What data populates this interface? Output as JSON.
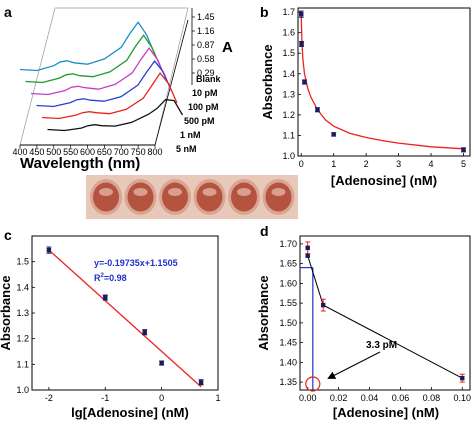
{
  "figure": {
    "panel_a": {
      "letter": "a",
      "xlabel": "Wavelength (nm)",
      "zlabel": "A",
      "x_ticks": [
        "400",
        "450",
        "500",
        "550",
        "600",
        "650",
        "700",
        "750",
        "800"
      ],
      "z_ticks": [
        "1.45",
        "1.16",
        "0.87",
        "0.58",
        "0.29"
      ],
      "samples": [
        "Blank",
        "10 pM",
        "100 pM",
        "500 pM",
        "1 nM",
        "5 nM"
      ]
    },
    "panel_b": {
      "letter": "b",
      "xlabel": "[Adenosine] (nM)",
      "ylabel": "Absorbance",
      "x_ticks": [
        "0",
        "1",
        "2",
        "3",
        "4",
        "5"
      ],
      "y_ticks": [
        "1.0",
        "1.1",
        "1.2",
        "1.3",
        "1.4",
        "1.5",
        "1.6",
        "1.7"
      ]
    },
    "panel_c": {
      "letter": "c",
      "xlabel": "lg[Adenosine] (nM)",
      "ylabel": "Absorbance",
      "x_ticks": [
        "-2",
        "-1",
        "0",
        "1"
      ],
      "y_ticks": [
        "1.0",
        "1.1",
        "1.2",
        "1.3",
        "1.4",
        "1.5"
      ],
      "equation": "y=-0.19735x+1.1505",
      "r2_prefix": "R",
      "r2_sup": "2",
      "r2_suffix": "=0.98"
    },
    "panel_d": {
      "letter": "d",
      "xlabel": "[Adenosine] (nM)",
      "ylabel": "Absorbance",
      "x_ticks": [
        "0.00",
        "0.02",
        "0.04",
        "0.06",
        "0.08",
        "0.10"
      ],
      "y_ticks": [
        "1.35",
        "1.40",
        "1.45",
        "1.50",
        "1.55",
        "1.60",
        "1.65",
        "1.70"
      ],
      "annotation": "3.3 pM"
    }
  },
  "colors": {
    "curve_red": "#e8231f",
    "fit_blue": "#1f32c8",
    "marker_dark": "#1a1a5e",
    "panel_a_series": [
      "#111111",
      "#e8231f",
      "#2b3fd0",
      "#c83cc8",
      "#1f9a2e",
      "#1a8fc8"
    ],
    "wells_bg": "#e8c8b8",
    "well_fill": "#b4533f"
  },
  "chart_data": [
    {
      "panel": "a",
      "type": "line",
      "xlabel": "Wavelength (nm)",
      "zlabel": "A",
      "xlim": [
        400,
        800
      ],
      "zlim": [
        0.29,
        1.45
      ],
      "series": [
        {
          "name": "Blank",
          "x": [
            400,
            450,
            500,
            520,
            540,
            560,
            600,
            650,
            700,
            725,
            750,
            775,
            800
          ],
          "values": [
            0.3,
            0.28,
            0.33,
            0.38,
            0.4,
            0.38,
            0.37,
            0.45,
            0.62,
            0.74,
            0.92,
            0.9,
            0.6
          ]
        },
        {
          "name": "10 pM",
          "x": [
            400,
            450,
            500,
            520,
            540,
            560,
            600,
            650,
            700,
            725,
            750,
            775,
            800
          ],
          "values": [
            0.3,
            0.28,
            0.35,
            0.4,
            0.42,
            0.4,
            0.38,
            0.47,
            0.7,
            0.96,
            1.22,
            1.0,
            0.6
          ]
        },
        {
          "name": "100 pM",
          "x": [
            400,
            450,
            500,
            520,
            540,
            560,
            600,
            650,
            700,
            725,
            750,
            775,
            800
          ],
          "values": [
            0.3,
            0.28,
            0.36,
            0.42,
            0.44,
            0.41,
            0.39,
            0.48,
            0.72,
            0.98,
            1.22,
            1.0,
            0.6
          ]
        },
        {
          "name": "500 pM",
          "x": [
            400,
            450,
            500,
            520,
            540,
            560,
            600,
            650,
            700,
            725,
            750,
            775,
            800
          ],
          "values": [
            0.3,
            0.28,
            0.36,
            0.43,
            0.45,
            0.42,
            0.39,
            0.49,
            0.73,
            1.0,
            1.24,
            1.0,
            0.6
          ]
        },
        {
          "name": "1 nM",
          "x": [
            400,
            450,
            500,
            520,
            540,
            560,
            600,
            650,
            700,
            725,
            750,
            775,
            800
          ],
          "values": [
            0.3,
            0.28,
            0.37,
            0.44,
            0.46,
            0.42,
            0.4,
            0.5,
            0.74,
            1.02,
            1.26,
            1.0,
            0.6
          ]
        },
        {
          "name": "5 nM",
          "x": [
            400,
            450,
            500,
            520,
            540,
            560,
            600,
            650,
            700,
            725,
            750,
            775,
            800
          ],
          "values": [
            0.3,
            0.28,
            0.38,
            0.46,
            0.48,
            0.44,
            0.41,
            0.52,
            0.76,
            1.04,
            1.28,
            1.02,
            0.6
          ]
        }
      ]
    },
    {
      "panel": "b",
      "type": "scatter",
      "xlabel": "[Adenosine] (nM)",
      "ylabel": "Absorbance",
      "xlim": [
        -0.1,
        5.2
      ],
      "ylim": [
        1.0,
        1.72
      ],
      "points": {
        "x": [
          0,
          0.01,
          0.1,
          0.5,
          1,
          5
        ],
        "values": [
          1.69,
          1.545,
          1.36,
          1.225,
          1.105,
          1.03
        ],
        "errors": [
          0.015,
          0.012,
          0.01,
          0.01,
          0.008,
          0.01
        ]
      },
      "fit": {
        "x": [
          0,
          0.02,
          0.05,
          0.1,
          0.2,
          0.3,
          0.5,
          0.75,
          1,
          1.5,
          2,
          2.5,
          3,
          4,
          5
        ],
        "values": [
          1.69,
          1.56,
          1.47,
          1.4,
          1.33,
          1.285,
          1.225,
          1.175,
          1.145,
          1.11,
          1.09,
          1.075,
          1.063,
          1.045,
          1.035
        ]
      }
    },
    {
      "panel": "c",
      "type": "scatter",
      "xlabel": "lg[Adenosine] (nM)",
      "ylabel": "Absorbance",
      "xlim": [
        -2.3,
        1.0
      ],
      "ylim": [
        1.0,
        1.6
      ],
      "points": {
        "x": [
          -2,
          -1,
          -0.3,
          0,
          0.7
        ],
        "values": [
          1.545,
          1.36,
          1.225,
          1.105,
          1.03
        ],
        "errors": [
          0.012,
          0.01,
          0.01,
          0.008,
          0.01
        ]
      },
      "fit": {
        "slope": -0.19735,
        "intercept": 1.1505,
        "x": [
          -2,
          0.7
        ]
      },
      "annotation": "y=-0.19735x+1.1505, R2=0.98"
    },
    {
      "panel": "d",
      "type": "line",
      "xlabel": "[Adenosine] (nM)",
      "ylabel": "Absorbance",
      "xlim": [
        -0.005,
        0.105
      ],
      "ylim": [
        1.33,
        1.72
      ],
      "points": {
        "x": [
          0,
          0.01,
          0.1
        ],
        "values": [
          1.69,
          1.545,
          1.36
        ],
        "errors": [
          0.015,
          0.015,
          0.01
        ]
      },
      "first_point": {
        "x": 0,
        "values": [
          1.69,
          1.67
        ]
      },
      "threshold": 1.64,
      "detection_limit_x": 0.0033,
      "annotation": "3.3 pM"
    }
  ]
}
